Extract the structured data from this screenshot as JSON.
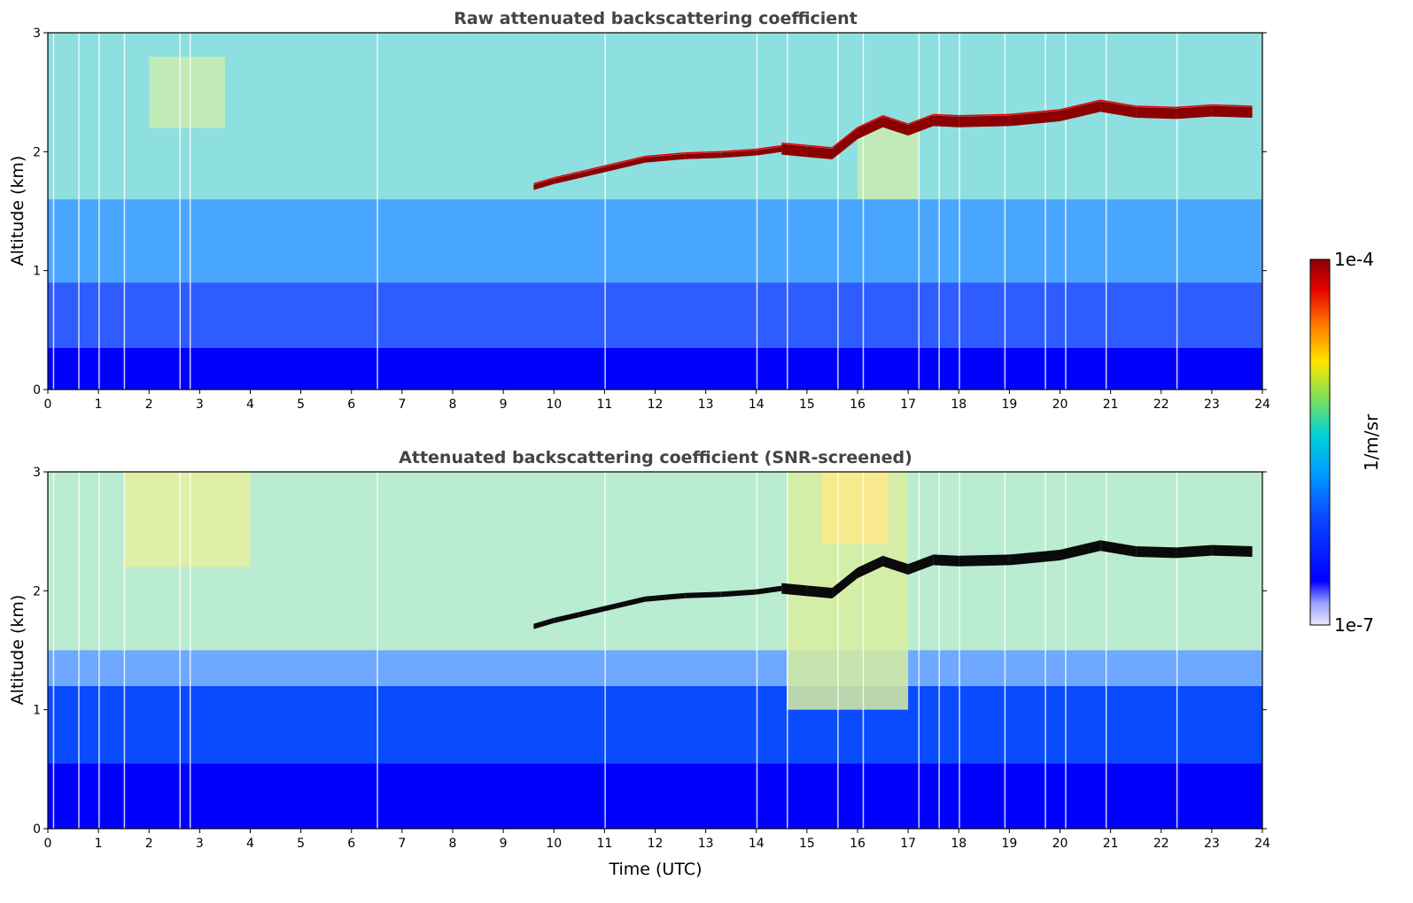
{
  "colormap_colors": {
    "min": "#e8e8f8",
    "lowblue": "#0000ff",
    "blue": "#0b4bff",
    "cyan": "#00c8e8",
    "green": "#7ee05a",
    "yellow": "#ffe600",
    "orange": "#ff7a00",
    "red": "#e60000",
    "max": "#8b0000"
  },
  "chart_data": [
    {
      "type": "heatmap",
      "title": "Raw attenuated backscattering coefficient",
      "xlabel": "",
      "ylabel": "Altitude (km)",
      "xlim": [
        0,
        24
      ],
      "ylim": [
        0,
        3
      ],
      "xticks": [
        "0",
        "1",
        "2",
        "3",
        "4",
        "5",
        "6",
        "7",
        "8",
        "9",
        "10",
        "11",
        "12",
        "13",
        "14",
        "15",
        "16",
        "17",
        "18",
        "19",
        "20",
        "21",
        "22",
        "23",
        "24"
      ],
      "yticks": [
        "0",
        "1",
        "2",
        "3"
      ],
      "cloud_layer": {
        "x": [
          9.6,
          10.0,
          10.5,
          11.8,
          12.6,
          13.3,
          14.0,
          14.5,
          15.0,
          15.5,
          16.0,
          16.5,
          17.0,
          17.5,
          18.0,
          19.0,
          20.0,
          20.8,
          21.5,
          22.3,
          23.0,
          23.8
        ],
        "y": [
          1.7,
          1.75,
          1.8,
          1.93,
          1.96,
          1.97,
          1.99,
          2.02,
          2.0,
          1.98,
          2.15,
          2.25,
          2.18,
          2.26,
          2.25,
          2.26,
          2.3,
          2.38,
          2.33,
          2.32,
          2.34,
          2.33
        ]
      }
    },
    {
      "type": "heatmap",
      "title": "Attenuated backscattering coefficient (SNR-screened)",
      "xlabel": "Time (UTC)",
      "ylabel": "Altitude (km)",
      "xlim": [
        0,
        24
      ],
      "ylim": [
        0,
        3
      ],
      "xticks": [
        "0",
        "1",
        "2",
        "3",
        "4",
        "5",
        "6",
        "7",
        "8",
        "9",
        "10",
        "11",
        "12",
        "13",
        "14",
        "15",
        "16",
        "17",
        "18",
        "19",
        "20",
        "21",
        "22",
        "23",
        "24"
      ],
      "yticks": [
        "0",
        "1",
        "2",
        "3"
      ],
      "cloud_layer": {
        "x": [
          9.6,
          10.0,
          10.5,
          11.8,
          12.6,
          13.3,
          14.0,
          14.5,
          15.0,
          15.5,
          16.0,
          16.5,
          17.0,
          17.5,
          18.0,
          19.0,
          20.0,
          20.8,
          21.5,
          22.3,
          23.0,
          23.8
        ],
        "y": [
          1.7,
          1.75,
          1.8,
          1.93,
          1.96,
          1.97,
          1.99,
          2.02,
          2.0,
          1.98,
          2.15,
          2.25,
          2.18,
          2.26,
          2.25,
          2.26,
          2.3,
          2.38,
          2.33,
          2.32,
          2.34,
          2.33
        ]
      }
    }
  ],
  "colorbar": {
    "max_label": "1e-4",
    "min_label": "1e-7",
    "unit_label": "1/m/sr"
  }
}
